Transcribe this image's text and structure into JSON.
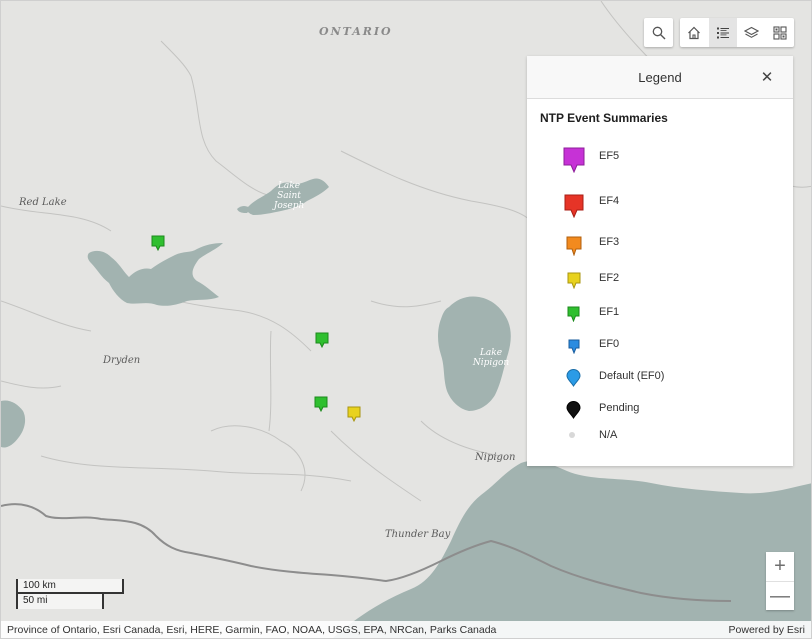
{
  "map": {
    "province_label": "ONTARIO",
    "places": [
      {
        "name": "Red Lake"
      },
      {
        "name": "Dryden"
      },
      {
        "name": "Nipigon"
      },
      {
        "name": "Thunder Bay"
      }
    ],
    "lakes": {
      "lake_st_joseph": "Lake\nSaint\nJoseph",
      "lake_nipigon": "Lake\nNipigon"
    },
    "water_color": "#a2b3b0",
    "land_color": "#e4e4e2",
    "border_color": "#8d8d8d",
    "markers": [
      {
        "category": "EF1",
        "color": "#2fbf2f"
      },
      {
        "category": "EF1",
        "color": "#2fbf2f"
      },
      {
        "category": "EF1",
        "color": "#2fbf2f"
      },
      {
        "category": "EF2",
        "color": "#e8d21e"
      }
    ]
  },
  "toolbar": {
    "search_icon": "search-icon",
    "home_icon": "home-icon",
    "legend_icon": "legend-icon",
    "layers_icon": "layers-icon",
    "basemap_icon": "basemap-gallery-icon"
  },
  "legend": {
    "title": "Legend",
    "close_symbol": "✕",
    "layer_title": "NTP Event Summaries",
    "items": [
      {
        "label": "EF5",
        "color": "#c632d6"
      },
      {
        "label": "EF4",
        "color": "#e63427"
      },
      {
        "label": "EF3",
        "color": "#f28a1e"
      },
      {
        "label": "EF2",
        "color": "#e8d21e"
      },
      {
        "label": "EF1",
        "color": "#2fbf2f"
      },
      {
        "label": "EF0",
        "color": "#2b8ce0"
      },
      {
        "label": "Default (EF0)",
        "color": "#2b9be6"
      },
      {
        "label": "Pending",
        "color": "#111111"
      },
      {
        "label": "N/A",
        "color": "#d8d8d8"
      }
    ]
  },
  "zoom": {
    "in": "+",
    "out": "—"
  },
  "scale": {
    "metric": "100 km",
    "imperial": "50 mi"
  },
  "attribution": {
    "sources": "Province of Ontario, Esri Canada, Esri, HERE, Garmin, FAO, NOAA, USGS, EPA, NRCan, Parks Canada",
    "powered_by": "Powered by Esri"
  }
}
